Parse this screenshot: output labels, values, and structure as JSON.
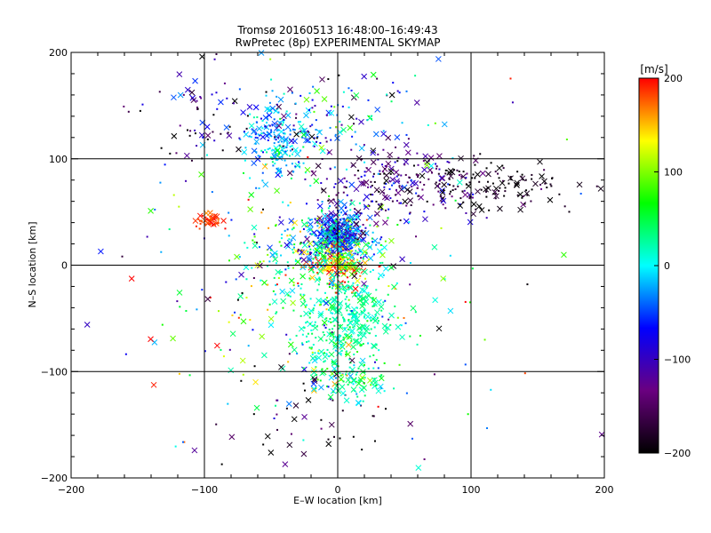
{
  "chart_data": {
    "type": "scatter",
    "title": "Tromsø 20160513 16:48:00–16:49:43",
    "subtitle": "RwPretec (8p) EXPERIMENTAL SKYMAP",
    "xlabel": "E–W location [km]",
    "ylabel": "N–S location [km]",
    "xlim": [
      -200,
      200
    ],
    "ylim": [
      -200,
      200
    ],
    "xticks": [
      -200,
      -100,
      0,
      100,
      200
    ],
    "yticks": [
      -200,
      -100,
      0,
      100,
      200
    ],
    "xtick_labels": [
      "−200",
      "−100",
      "0",
      "100",
      "200"
    ],
    "ytick_labels": [
      "−200",
      "−100",
      "0",
      "100",
      "200"
    ],
    "grid": true,
    "colorbar": {
      "label": "[m/s]",
      "range": [
        -200,
        200
      ],
      "ticks": [
        200,
        100,
        0,
        -100,
        -200
      ],
      "tick_labels": [
        "200",
        "100",
        "0",
        "−100",
        "−200"
      ],
      "colormap": [
        "#000000",
        "#6a0080",
        "#0000ff",
        "#00ffff",
        "#00ff00",
        "#ffff00",
        "#ff0000"
      ]
    },
    "marker_types": [
      "dot",
      "cross"
    ],
    "clusters": [
      {
        "x": 0,
        "y": 30,
        "sx": 10,
        "sy": 10,
        "n": 400,
        "v": -60,
        "sv": 45
      },
      {
        "x": 0,
        "y": 0,
        "sx": 10,
        "sy": 8,
        "n": 150,
        "v": 150,
        "sv": 45
      },
      {
        "x": -8,
        "y": 20,
        "sx": 25,
        "sy": 15,
        "n": 200,
        "v": 0,
        "sv": 90
      },
      {
        "x": 5,
        "y": -50,
        "sx": 20,
        "sy": 30,
        "n": 380,
        "v": 25,
        "sv": 20
      },
      {
        "x": 40,
        "y": 75,
        "sx": 30,
        "sy": 18,
        "n": 230,
        "v": -130,
        "sv": 45
      },
      {
        "x": 120,
        "y": 75,
        "sx": 30,
        "sy": 12,
        "n": 130,
        "v": -190,
        "sv": 15
      },
      {
        "x": -45,
        "y": 115,
        "sx": 12,
        "sy": 18,
        "n": 180,
        "v": -20,
        "sv": 30
      },
      {
        "x": -10,
        "y": 140,
        "sx": 30,
        "sy": 20,
        "n": 120,
        "v": -70,
        "sv": 70
      },
      {
        "x": -100,
        "y": 140,
        "sx": 20,
        "sy": 25,
        "n": 70,
        "v": -150,
        "sv": 60
      },
      {
        "x": -95,
        "y": 42,
        "sx": 5,
        "sy": 3,
        "n": 50,
        "v": 185,
        "sv": 10
      },
      {
        "x": -30,
        "y": -20,
        "sx": 40,
        "sy": 40,
        "n": 180,
        "v": 60,
        "sv": 80
      },
      {
        "x": -15,
        "y": -140,
        "sx": 35,
        "sy": 30,
        "n": 50,
        "v": -180,
        "sv": 30
      },
      {
        "x": 0,
        "y": 0,
        "sx": 90,
        "sy": 90,
        "n": 180,
        "v": 0,
        "sv": 110
      },
      {
        "x": 10,
        "y": -110,
        "sx": 15,
        "sy": 10,
        "n": 70,
        "v": 30,
        "sv": 40
      }
    ]
  }
}
